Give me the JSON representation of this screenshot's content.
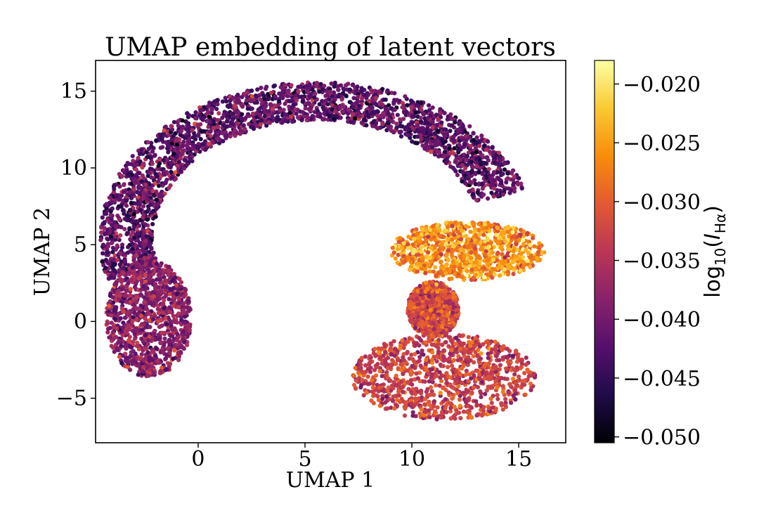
{
  "chart_data": {
    "type": "scatter",
    "title": "UMAP embedding of latent vectors",
    "xlabel": "UMAP 1",
    "ylabel": "UMAP 2",
    "xlim": [
      -4.8,
      17.2
    ],
    "ylim": [
      -7.9,
      17.0
    ],
    "xticks": [
      0,
      5,
      10,
      15
    ],
    "yticks": [
      -5,
      0,
      5,
      10,
      15
    ],
    "grid": false,
    "colormap": "inferno",
    "colorbar": {
      "label": "log10(I_Hα)",
      "range": [
        -0.0505,
        -0.018
      ],
      "ticks": [
        -0.05,
        -0.045,
        -0.04,
        -0.035,
        -0.03,
        -0.025,
        -0.02
      ],
      "tick_labels": [
        "−0.050",
        "−0.045",
        "−0.040",
        "−0.035",
        "−0.030",
        "−0.025",
        "−0.020"
      ]
    },
    "clusters": [
      {
        "shape": "arc",
        "center": [
          5.6,
          5.4
        ],
        "inner_radius": 7.7,
        "outer_radius": 10.2,
        "angle_start_deg": 18,
        "angle_end_deg": 195,
        "value_mean": -0.0415,
        "value_sd": 0.0035
      },
      {
        "shape": "blob",
        "center": [
          -2.3,
          0.2
        ],
        "radius": [
          2.0,
          3.8
        ],
        "value_mean": -0.038,
        "value_sd": 0.003
      },
      {
        "shape": "blob",
        "center": [
          12.6,
          4.6
        ],
        "radius": [
          3.6,
          1.9
        ],
        "value_mean": -0.026,
        "value_sd": 0.0035
      },
      {
        "shape": "blob",
        "center": [
          11.5,
          -3.6
        ],
        "radius": [
          4.3,
          2.8
        ],
        "value_mean": -0.033,
        "value_sd": 0.003
      },
      {
        "shape": "blob",
        "center": [
          11.0,
          0.8
        ],
        "radius": [
          1.2,
          1.8
        ],
        "value_mean": -0.032,
        "value_sd": 0.003
      }
    ]
  }
}
